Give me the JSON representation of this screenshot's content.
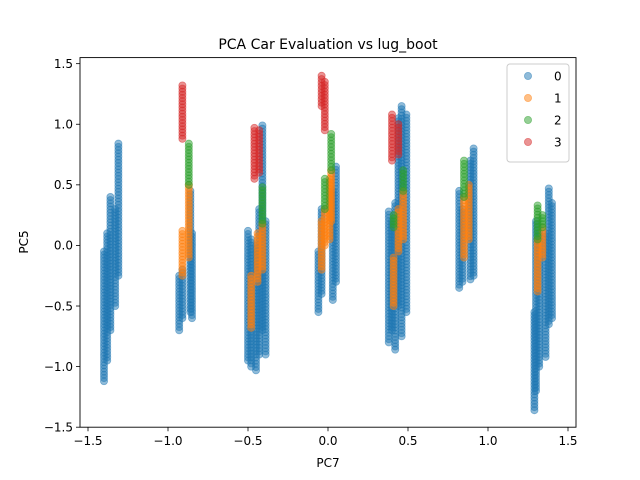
{
  "chart_data": {
    "type": "scatter",
    "title": "PCA Car Evaluation vs lug_boot",
    "xlabel": "PC7",
    "ylabel": "PC5",
    "xlim": [
      -1.55,
      1.55
    ],
    "ylim": [
      -1.5,
      1.55
    ],
    "xticks": [
      {
        "value": -1.5,
        "label": "−1.5"
      },
      {
        "value": -1.0,
        "label": "−1.0"
      },
      {
        "value": -0.5,
        "label": "−0.5"
      },
      {
        "value": 0.0,
        "label": "0.0"
      },
      {
        "value": 0.5,
        "label": "0.5"
      },
      {
        "value": 1.0,
        "label": "1.0"
      },
      {
        "value": 1.5,
        "label": "1.5"
      }
    ],
    "yticks": [
      {
        "value": -1.5,
        "label": "−1.5"
      },
      {
        "value": -1.0,
        "label": "−1.0"
      },
      {
        "value": -0.5,
        "label": "−0.5"
      },
      {
        "value": 0.0,
        "label": "0.0"
      },
      {
        "value": 0.5,
        "label": "0.5"
      },
      {
        "value": 1.0,
        "label": "1.0"
      },
      {
        "value": 1.5,
        "label": "1.5"
      }
    ],
    "grid": false,
    "legend_position": "upper-right",
    "marker_alpha": 0.5,
    "series": [
      {
        "name": "0",
        "color": "#1f77b4",
        "segments": [
          {
            "x": [
              -1.4,
              -1.4
            ],
            "y": [
              -1.12,
              -0.05
            ]
          },
          {
            "x": [
              -1.38,
              -1.38
            ],
            "y": [
              -0.95,
              0.1
            ]
          },
          {
            "x": [
              -1.36,
              -1.36
            ],
            "y": [
              -0.7,
              0.4
            ]
          },
          {
            "x": [
              -1.33,
              -1.33
            ],
            "y": [
              -0.5,
              0.3
            ]
          },
          {
            "x": [
              -1.31,
              -1.31
            ],
            "y": [
              -0.25,
              0.84
            ]
          },
          {
            "x": [
              -0.93,
              -0.93
            ],
            "y": [
              -0.7,
              -0.25
            ]
          },
          {
            "x": [
              -0.91,
              -0.91
            ],
            "y": [
              -0.6,
              -0.2
            ]
          },
          {
            "x": [
              -0.86,
              -0.86
            ],
            "y": [
              -0.55,
              0.45
            ]
          },
          {
            "x": [
              -0.85,
              -0.85
            ],
            "y": [
              -0.6,
              0.1
            ]
          },
          {
            "x": [
              -0.5,
              -0.5
            ],
            "y": [
              -0.95,
              0.12
            ]
          },
          {
            "x": [
              -0.48,
              -0.48
            ],
            "y": [
              -1.0,
              0.05
            ]
          },
          {
            "x": [
              -0.45,
              -0.45
            ],
            "y": [
              -1.03,
              0.0
            ]
          },
          {
            "x": [
              -0.43,
              -0.43
            ],
            "y": [
              -0.9,
              0.3
            ]
          },
          {
            "x": [
              -0.41,
              -0.41
            ],
            "y": [
              -0.7,
              0.99
            ]
          },
          {
            "x": [
              -0.39,
              -0.39
            ],
            "y": [
              -0.9,
              0.2
            ]
          },
          {
            "x": [
              -0.06,
              -0.06
            ],
            "y": [
              -0.55,
              -0.05
            ]
          },
          {
            "x": [
              -0.04,
              -0.04
            ],
            "y": [
              -0.4,
              0.3
            ]
          },
          {
            "x": [
              0.03,
              0.03
            ],
            "y": [
              -0.45,
              0.45
            ]
          },
          {
            "x": [
              0.05,
              0.05
            ],
            "y": [
              -0.3,
              0.65
            ]
          },
          {
            "x": [
              0.38,
              0.38
            ],
            "y": [
              -0.8,
              0.28
            ]
          },
          {
            "x": [
              0.4,
              0.4
            ],
            "y": [
              -0.7,
              0.2
            ]
          },
          {
            "x": [
              0.42,
              0.42
            ],
            "y": [
              -0.86,
              0.35
            ]
          },
          {
            "x": [
              0.44,
              0.44
            ],
            "y": [
              -0.5,
              1.05
            ]
          },
          {
            "x": [
              0.46,
              0.46
            ],
            "y": [
              -0.75,
              1.15
            ]
          },
          {
            "x": [
              0.49,
              0.49
            ],
            "y": [
              -0.55,
              1.08
            ]
          },
          {
            "x": [
              0.82,
              0.82
            ],
            "y": [
              -0.35,
              0.45
            ]
          },
          {
            "x": [
              0.84,
              0.84
            ],
            "y": [
              -0.3,
              0.3
            ]
          },
          {
            "x": [
              0.89,
              0.89
            ],
            "y": [
              -0.28,
              0.7
            ]
          },
          {
            "x": [
              0.91,
              0.91
            ],
            "y": [
              -0.25,
              0.8
            ]
          },
          {
            "x": [
              1.29,
              1.29
            ],
            "y": [
              -1.36,
              -0.55
            ]
          },
          {
            "x": [
              1.3,
              1.3
            ],
            "y": [
              -1.2,
              0.2
            ]
          },
          {
            "x": [
              1.32,
              1.32
            ],
            "y": [
              -1.0,
              0.1
            ]
          },
          {
            "x": [
              1.36,
              1.36
            ],
            "y": [
              -0.92,
              0.1
            ]
          },
          {
            "x": [
              1.38,
              1.38
            ],
            "y": [
              -0.65,
              0.47
            ]
          },
          {
            "x": [
              1.4,
              1.4
            ],
            "y": [
              -0.6,
              0.35
            ]
          }
        ]
      },
      {
        "name": "1",
        "color": "#ff7f0e",
        "segments": [
          {
            "x": [
              -0.91,
              -0.91
            ],
            "y": [
              -0.25,
              0.12
            ]
          },
          {
            "x": [
              -0.87,
              -0.87
            ],
            "y": [
              -0.1,
              0.5
            ]
          },
          {
            "x": [
              -0.48,
              -0.48
            ],
            "y": [
              -0.68,
              -0.25
            ]
          },
          {
            "x": [
              -0.44,
              -0.44
            ],
            "y": [
              -0.3,
              0.1
            ]
          },
          {
            "x": [
              -0.41,
              -0.41
            ],
            "y": [
              -0.2,
              0.18
            ]
          },
          {
            "x": [
              -0.04,
              -0.04
            ],
            "y": [
              -0.2,
              0.2
            ]
          },
          {
            "x": [
              -0.02,
              -0.02
            ],
            "y": [
              0.0,
              0.3
            ]
          },
          {
            "x": [
              0.01,
              0.01
            ],
            "y": [
              0.05,
              0.55
            ]
          },
          {
            "x": [
              0.02,
              0.02
            ],
            "y": [
              0.2,
              0.62
            ]
          },
          {
            "x": [
              0.41,
              0.41
            ],
            "y": [
              -0.5,
              -0.1
            ]
          },
          {
            "x": [
              0.44,
              0.44
            ],
            "y": [
              -0.05,
              0.3
            ]
          },
          {
            "x": [
              0.47,
              0.47
            ],
            "y": [
              0.05,
              0.45
            ]
          },
          {
            "x": [
              0.85,
              0.85
            ],
            "y": [
              -0.1,
              0.4
            ]
          },
          {
            "x": [
              0.88,
              0.88
            ],
            "y": [
              0.05,
              0.5
            ]
          },
          {
            "x": [
              1.31,
              1.31
            ],
            "y": [
              -0.38,
              0.05
            ]
          },
          {
            "x": [
              1.34,
              1.34
            ],
            "y": [
              -0.1,
              0.15
            ]
          }
        ]
      },
      {
        "name": "2",
        "color": "#2ca02c",
        "segments": [
          {
            "x": [
              -0.87,
              -0.87
            ],
            "y": [
              0.5,
              0.84
            ]
          },
          {
            "x": [
              -0.41,
              -0.41
            ],
            "y": [
              0.18,
              0.48
            ]
          },
          {
            "x": [
              -0.02,
              -0.02
            ],
            "y": [
              0.3,
              0.55
            ]
          },
          {
            "x": [
              0.02,
              0.02
            ],
            "y": [
              0.62,
              0.92
            ]
          },
          {
            "x": [
              0.41,
              0.41
            ],
            "y": [
              0.15,
              0.25
            ]
          },
          {
            "x": [
              0.47,
              0.47
            ],
            "y": [
              0.45,
              0.62
            ]
          },
          {
            "x": [
              0.85,
              0.85
            ],
            "y": [
              0.4,
              0.7
            ]
          },
          {
            "x": [
              1.31,
              1.31
            ],
            "y": [
              0.05,
              0.33
            ]
          },
          {
            "x": [
              1.34,
              1.34
            ],
            "y": [
              0.15,
              0.25
            ]
          }
        ]
      },
      {
        "name": "3",
        "color": "#d62728",
        "segments": [
          {
            "x": [
              -0.91,
              -0.91
            ],
            "y": [
              0.88,
              1.32
            ]
          },
          {
            "x": [
              -0.46,
              -0.46
            ],
            "y": [
              0.55,
              0.97
            ]
          },
          {
            "x": [
              -0.43,
              -0.43
            ],
            "y": [
              0.6,
              0.95
            ]
          },
          {
            "x": [
              -0.04,
              -0.04
            ],
            "y": [
              1.15,
              1.4
            ]
          },
          {
            "x": [
              -0.02,
              -0.02
            ],
            "y": [
              0.95,
              1.35
            ]
          },
          {
            "x": [
              0.4,
              0.4
            ],
            "y": [
              0.7,
              1.08
            ]
          },
          {
            "x": [
              0.44,
              0.44
            ],
            "y": [
              0.75,
              1.0
            ]
          }
        ]
      }
    ]
  }
}
